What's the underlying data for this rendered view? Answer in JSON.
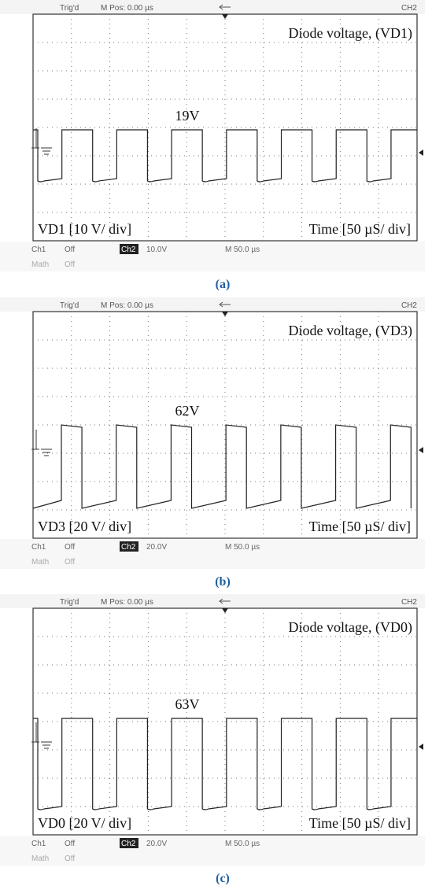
{
  "panels": [
    {
      "header": {
        "trig": "Trig'd",
        "mpos": "M Pos: 0.00 µs",
        "channel": "CH2"
      },
      "title": "Diode voltage, (VD1)",
      "level_label": "19V",
      "scale_label": "VD1 [10 V/ div]",
      "time_label": "Time [50 µS/ div]",
      "status": {
        "ch1": "Ch1",
        "ch1_state": "Off",
        "ch2": "Ch2",
        "ch2_scale": "10.0V",
        "time": "M 50.0 µs",
        "math": "Math",
        "math_state": "Off"
      },
      "caption": "(a)"
    },
    {
      "header": {
        "trig": "Trig'd",
        "mpos": "M Pos: 0.00 µs",
        "channel": "CH2"
      },
      "title": "Diode voltage, (VD3)",
      "level_label": "62V",
      "scale_label": "VD3 [20 V/ div]",
      "time_label": "Time [50 µS/ div]",
      "status": {
        "ch1": "Ch1",
        "ch1_state": "Off",
        "ch2": "Ch2",
        "ch2_scale": "20.0V",
        "time": "M 50.0 µs",
        "math": "Math",
        "math_state": "Off"
      },
      "caption": "(b)"
    },
    {
      "header": {
        "trig": "Trig'd",
        "mpos": "M Pos: 0.00 µs",
        "channel": "CH2"
      },
      "title": "Diode voltage, (VD0)",
      "level_label": "63V",
      "scale_label": "VD0 [20 V/ div]",
      "time_label": "Time [50 µS/ div]",
      "status": {
        "ch1": "Ch1",
        "ch1_state": "Off",
        "ch2": "Ch2",
        "ch2_scale": "20.0V",
        "time": "M 50.0 µs",
        "math": "Math",
        "math_state": "Off"
      },
      "caption": "(c)"
    }
  ]
}
